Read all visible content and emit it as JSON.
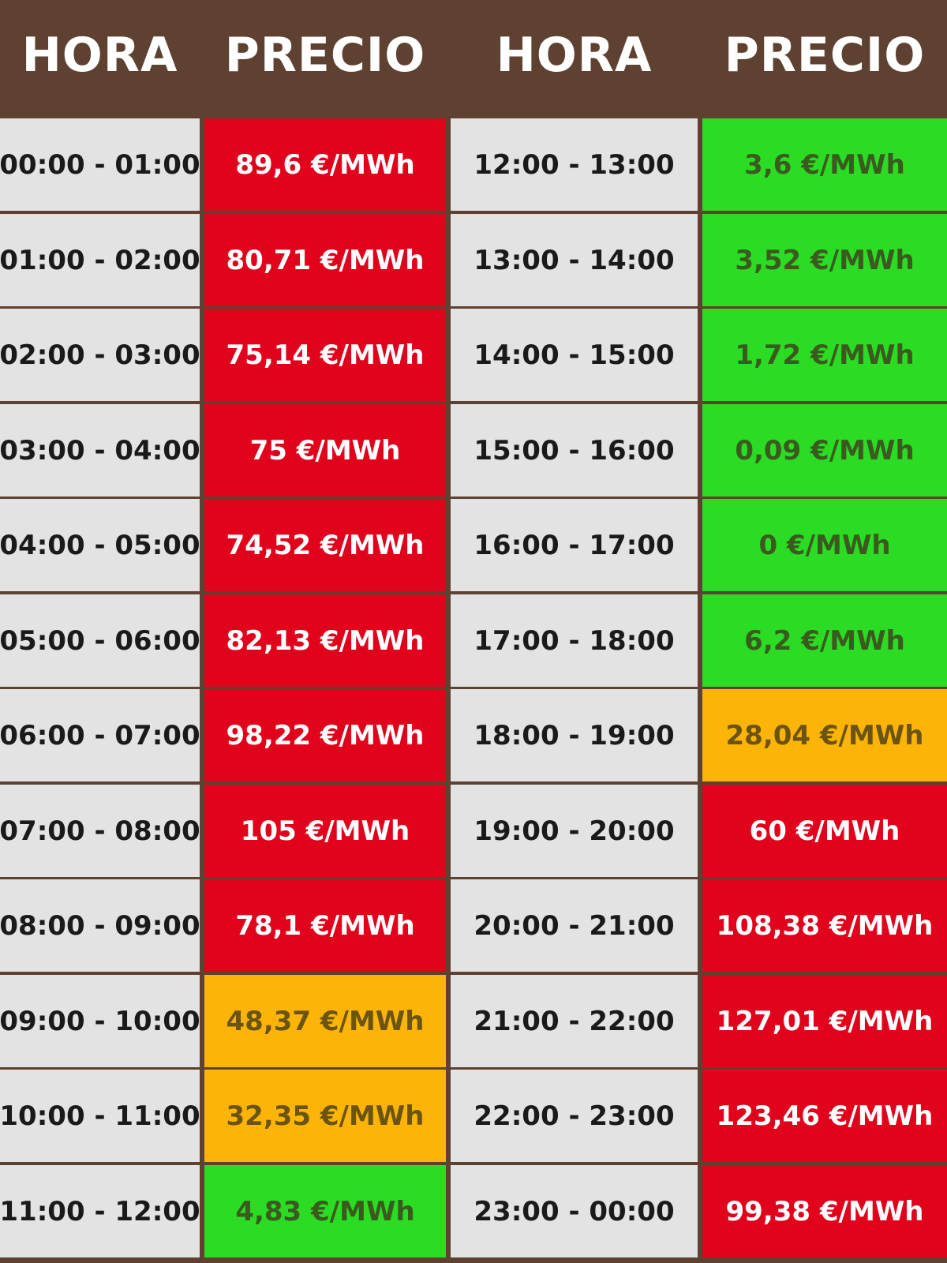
{
  "header": {
    "col1": "HORA",
    "col2": "PRECIO",
    "col3": "HORA",
    "col4": "PRECIO"
  },
  "colors": {
    "header_bg": "#5e4130",
    "time_bg": "#e3e3e3",
    "red": "#e0031b",
    "green": "#2bdb24",
    "orange": "#fbb407"
  },
  "rows": [
    {
      "left_hour": "00:00 - 01:00",
      "left_price": "89,6 €/MWh",
      "left_level": "red",
      "right_hour": "12:00 - 13:00",
      "right_price": "3,6 €/MWh",
      "right_level": "green"
    },
    {
      "left_hour": "01:00 - 02:00",
      "left_price": "80,71 €/MWh",
      "left_level": "red",
      "right_hour": "13:00 - 14:00",
      "right_price": "3,52 €/MWh",
      "right_level": "green"
    },
    {
      "left_hour": "02:00 - 03:00",
      "left_price": "75,14 €/MWh",
      "left_level": "red",
      "right_hour": "14:00 - 15:00",
      "right_price": "1,72 €/MWh",
      "right_level": "green"
    },
    {
      "left_hour": "03:00 - 04:00",
      "left_price": "75 €/MWh",
      "left_level": "red",
      "right_hour": "15:00 - 16:00",
      "right_price": "0,09 €/MWh",
      "right_level": "green"
    },
    {
      "left_hour": "04:00 - 05:00",
      "left_price": "74,52 €/MWh",
      "left_level": "red",
      "right_hour": "16:00 - 17:00",
      "right_price": "0 €/MWh",
      "right_level": "green"
    },
    {
      "left_hour": "05:00 - 06:00",
      "left_price": "82,13 €/MWh",
      "left_level": "red",
      "right_hour": "17:00 - 18:00",
      "right_price": "6,2 €/MWh",
      "right_level": "green"
    },
    {
      "left_hour": "06:00 - 07:00",
      "left_price": "98,22 €/MWh",
      "left_level": "red",
      "right_hour": "18:00 - 19:00",
      "right_price": "28,04 €/MWh",
      "right_level": "orange"
    },
    {
      "left_hour": "07:00 - 08:00",
      "left_price": "105 €/MWh",
      "left_level": "red",
      "right_hour": "19:00 - 20:00",
      "right_price": "60 €/MWh",
      "right_level": "red"
    },
    {
      "left_hour": "08:00 - 09:00",
      "left_price": "78,1 €/MWh",
      "left_level": "red",
      "right_hour": "20:00 - 21:00",
      "right_price": "108,38 €/MWh",
      "right_level": "red"
    },
    {
      "left_hour": "09:00 - 10:00",
      "left_price": "48,37 €/MWh",
      "left_level": "orange",
      "right_hour": "21:00 - 22:00",
      "right_price": "127,01 €/MWh",
      "right_level": "red"
    },
    {
      "left_hour": "10:00 - 11:00",
      "left_price": "32,35 €/MWh",
      "left_level": "orange",
      "right_hour": "22:00 - 23:00",
      "right_price": "123,46 €/MWh",
      "right_level": "red"
    },
    {
      "left_hour": "11:00 - 12:00",
      "left_price": "4,83 €/MWh",
      "left_level": "green",
      "right_hour": "23:00 - 00:00",
      "right_price": "99,38 €/MWh",
      "right_level": "red"
    }
  ]
}
